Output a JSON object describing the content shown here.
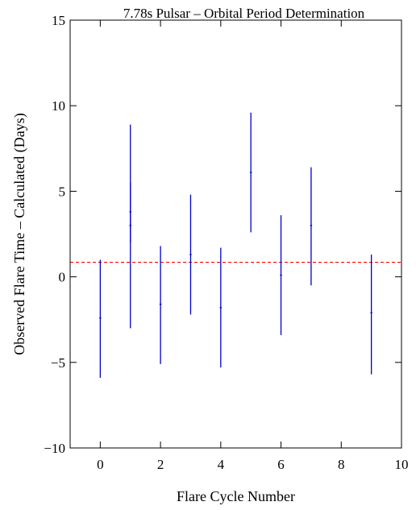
{
  "chart_data": {
    "type": "errorbar",
    "title": "7.78s Pulsar – Orbital Period Determination",
    "xlabel": "Flare Cycle Number",
    "ylabel": "Observed Flare Time – Calculated (Days)",
    "xlim": [
      -1,
      10
    ],
    "ylim": [
      -10,
      15
    ],
    "xticks": [
      0,
      2,
      4,
      6,
      8,
      10
    ],
    "xtick_labels": [
      "0",
      "2",
      "4",
      "6",
      "8",
      "10"
    ],
    "yticks": [
      -10,
      -5,
      0,
      5,
      10,
      15
    ],
    "ytick_labels": [
      "−10",
      "−5",
      "0",
      "5",
      "10",
      "15"
    ],
    "grid": false,
    "error_bar_color": "#0000cc",
    "points": [
      {
        "x": 0,
        "y": -2.4,
        "low": -5.9,
        "high": 1.0
      },
      {
        "x": 1,
        "y": 3.8,
        "low": 2.0,
        "high": 5.5
      },
      {
        "x": 1,
        "y": 3.0,
        "low": -3.0,
        "high": 8.9
      },
      {
        "x": 2,
        "y": -1.6,
        "low": -5.1,
        "high": 1.8
      },
      {
        "x": 3,
        "y": 1.3,
        "low": -2.2,
        "high": 4.8
      },
      {
        "x": 4,
        "y": -1.8,
        "low": -5.3,
        "high": 1.7
      },
      {
        "x": 5,
        "y": 6.1,
        "low": 2.6,
        "high": 9.6
      },
      {
        "x": 6,
        "y": 0.1,
        "low": -3.4,
        "high": 3.6
      },
      {
        "x": 7,
        "y": 3.0,
        "low": -0.5,
        "high": 6.4
      },
      {
        "x": 9,
        "y": -2.1,
        "low": -5.7,
        "high": 1.3
      }
    ],
    "reference_line": {
      "y": 0.85,
      "color": "#ff0000",
      "style": "dashed"
    }
  }
}
